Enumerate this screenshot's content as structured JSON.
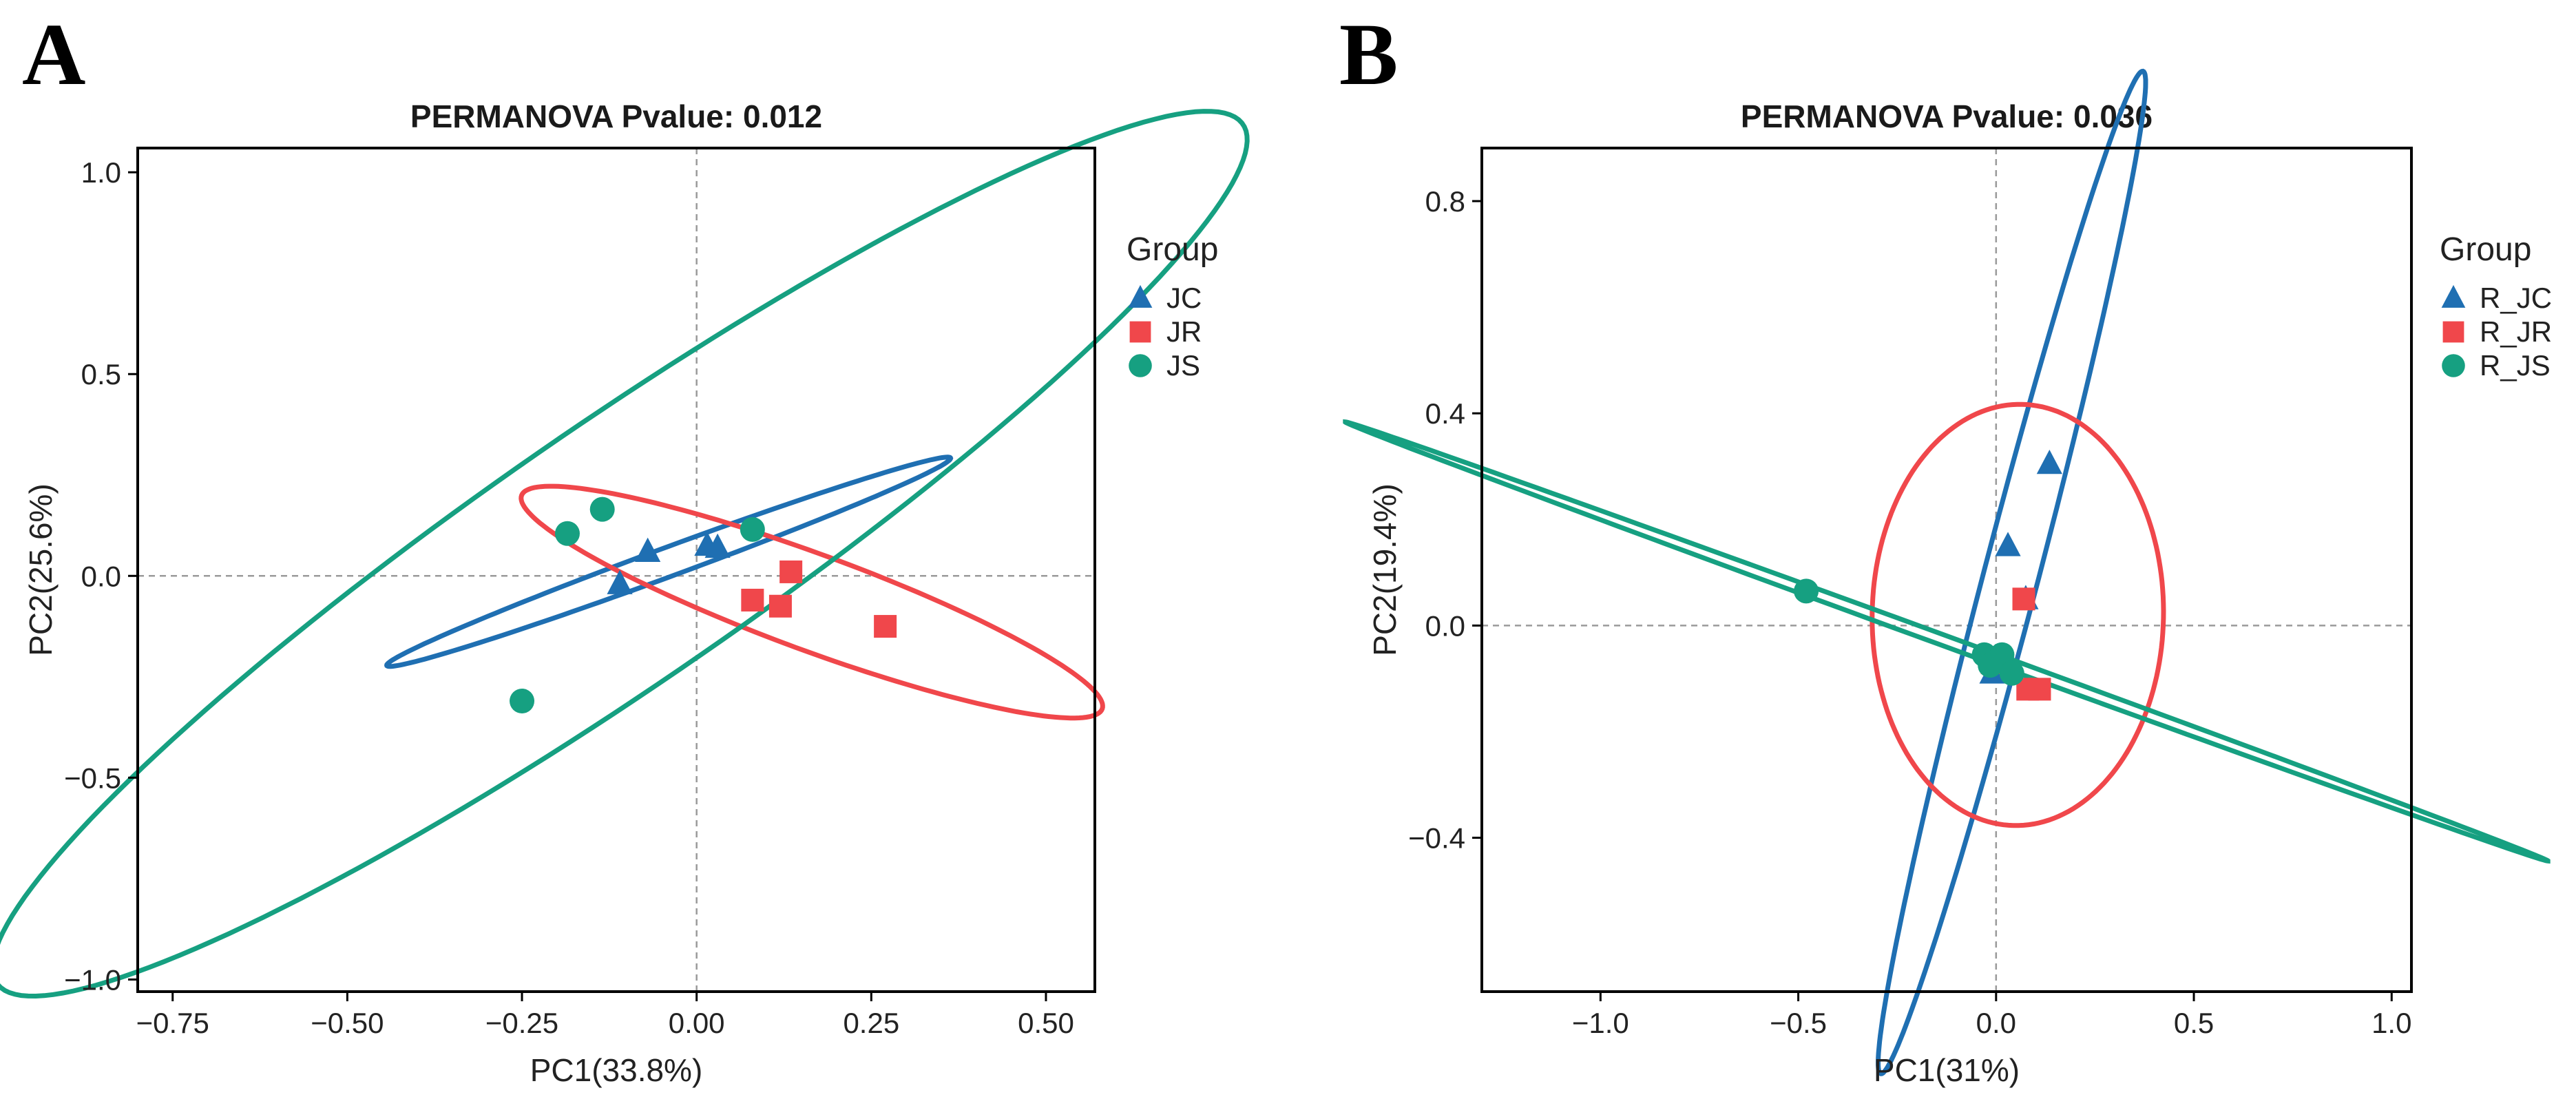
{
  "panels": [
    {
      "letter": "A"
    },
    {
      "letter": "B"
    }
  ],
  "chart_data": [
    {
      "type": "scatter",
      "panel": "A",
      "title": "PERMANOVA Pvalue: 0.012",
      "xlabel": "PC1(33.8%)",
      "ylabel": "PC2(25.6%)",
      "xlim": [
        -0.8,
        0.57
      ],
      "ylim": [
        -1.03,
        1.06
      ],
      "xticks": [
        -0.75,
        -0.5,
        -0.25,
        0.0,
        0.25,
        0.5
      ],
      "xtick_labels": [
        "−0.75",
        "−0.50",
        "−0.25",
        "0.00",
        "0.25",
        "0.50"
      ],
      "yticks": [
        1.0,
        0.5,
        0.0,
        -0.5,
        -1.0
      ],
      "ytick_labels": [
        "1.0",
        "0.5",
        "0.0",
        "−0.5",
        "−1.0"
      ],
      "reference_lines": {
        "x": 0,
        "y": 0
      },
      "legend": {
        "title": "Group",
        "position": "right"
      },
      "series": [
        {
          "name": "JC",
          "marker": "triangle",
          "color": "#1f6fb2",
          "points": [
            [
              -0.11,
              -0.02
            ],
            [
              -0.07,
              0.06
            ],
            [
              0.015,
              0.075
            ],
            [
              0.03,
              0.07
            ]
          ],
          "ellipse": [
            [
              -0.34,
              -0.13
            ],
            [
              0.26,
              0.2
            ],
            [
              0.18,
              0.26
            ],
            [
              -0.36,
              -0.14
            ]
          ]
        },
        {
          "name": "JR",
          "marker": "square",
          "color": "#f0474b",
          "points": [
            [
              0.08,
              -0.06
            ],
            [
              0.12,
              -0.075
            ],
            [
              0.135,
              0.01
            ],
            [
              0.27,
              -0.125
            ]
          ],
          "ellipse": [
            [
              -0.2,
              0.1
            ],
            [
              0.53,
              -0.23
            ],
            [
              0.22,
              -0.34
            ],
            [
              -0.18,
              0.13
            ]
          ]
        },
        {
          "name": "JS",
          "marker": "circle",
          "color": "#16a081",
          "points": [
            [
              -0.185,
              0.105
            ],
            [
              -0.135,
              0.165
            ],
            [
              0.08,
              0.115
            ],
            [
              -0.25,
              -0.31
            ]
          ],
          "ellipse": [
            [
              -0.74,
              -0.94
            ],
            [
              0.52,
              1.05
            ],
            [
              0.53,
              0.62
            ],
            [
              -0.75,
              -0.3
            ]
          ]
        }
      ]
    },
    {
      "type": "scatter",
      "panel": "B",
      "title": "PERMANOVA Pvalue: 0.036",
      "xlabel": "PC1(31%)",
      "ylabel": "PC2(19.4%)",
      "xlim": [
        -1.3,
        1.05
      ],
      "ylim": [
        -0.69,
        0.9
      ],
      "xticks": [
        -1.0,
        -0.5,
        0.0,
        0.5,
        1.0
      ],
      "xtick_labels": [
        "−1.0",
        "−0.5",
        "0.0",
        "0.5",
        "1.0"
      ],
      "yticks": [
        0.8,
        0.4,
        0.0,
        -0.4
      ],
      "ytick_labels": [
        "0.8",
        "0.4",
        "0.0",
        "−0.4"
      ],
      "reference_lines": {
        "x": 0,
        "y": 0
      },
      "legend": {
        "title": "Group",
        "position": "right"
      },
      "series": [
        {
          "name": "R_JC",
          "marker": "triangle",
          "color": "#1f6fb2",
          "points": [
            [
              0.135,
              0.305
            ],
            [
              0.03,
              0.15
            ],
            [
              0.075,
              0.05
            ],
            [
              -0.01,
              -0.09
            ]
          ],
          "ellipse": [
            [
              -0.17,
              -0.63
            ],
            [
              0.25,
              0.83
            ],
            [
              0.33,
              0.7
            ],
            [
              -0.2,
              -0.5
            ]
          ]
        },
        {
          "name": "R_JR",
          "marker": "square",
          "color": "#f0474b",
          "points": [
            [
              0.07,
              0.05
            ],
            [
              0.08,
              -0.12
            ],
            [
              0.11,
              -0.12
            ],
            [
              -0.01,
              -0.07
            ]
          ],
          "ellipse": [
            [
              -0.22,
              0.28
            ],
            [
              0.33,
              -0.24
            ],
            [
              0.3,
              0.18
            ],
            [
              -0.19,
              -0.42
            ]
          ]
        },
        {
          "name": "R_JS",
          "marker": "circle",
          "color": "#16a081",
          "points": [
            [
              -0.48,
              0.065
            ],
            [
              -0.03,
              -0.055
            ],
            [
              0.015,
              -0.055
            ],
            [
              0.04,
              -0.09
            ],
            [
              -0.015,
              -0.075
            ]
          ],
          "ellipse": [
            [
              -1.2,
              0.27
            ],
            [
              0.95,
              -0.33
            ],
            [
              0.95,
              -0.33
            ],
            [
              -1.2,
              0.24
            ]
          ]
        }
      ]
    }
  ]
}
